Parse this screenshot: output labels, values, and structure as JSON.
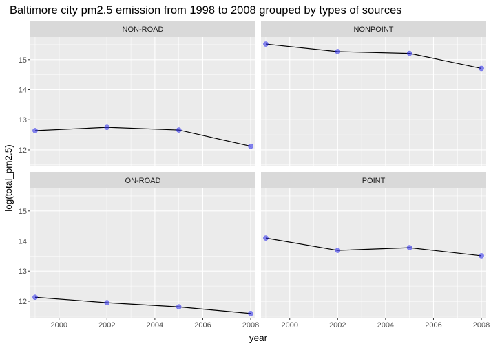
{
  "chart_data": {
    "type": "line",
    "title": "Baltimore city pm2.5 emission from 1998 to 2008 grouped by types of sources",
    "xlabel": "year",
    "ylabel": "log(total_pm2.5)",
    "xlim": [
      1998.8,
      2008.2
    ],
    "ylim": [
      11.45,
      15.75
    ],
    "x_ticks": [
      2000,
      2002,
      2004,
      2006,
      2008
    ],
    "y_ticks": [
      12,
      13,
      14,
      15
    ],
    "x": [
      1999,
      2002,
      2005,
      2008
    ],
    "grid": true,
    "point_color": "#2828eb",
    "line_color": "#000000",
    "panel_background": "#ebebeb",
    "strip_background": "#d9d9d9",
    "facets": [
      {
        "label": "NON-ROAD",
        "values": [
          12.64,
          12.75,
          12.66,
          12.12
        ]
      },
      {
        "label": "NONPOINT",
        "values": [
          15.52,
          15.27,
          15.21,
          14.71
        ]
      },
      {
        "label": "ON-ROAD",
        "values": [
          12.13,
          11.95,
          11.81,
          11.59
        ]
      },
      {
        "label": "POINT",
        "values": [
          14.1,
          13.69,
          13.78,
          13.51
        ]
      }
    ]
  }
}
